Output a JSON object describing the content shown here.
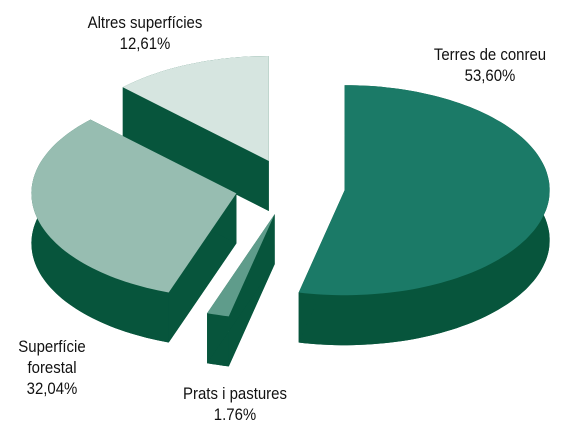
{
  "chart_data": {
    "type": "pie3d",
    "categories": [
      "Terres de conreu",
      "Prats i pastures",
      "Superfície forestal",
      "Altres superfícies"
    ],
    "values": [
      53.6,
      1.76,
      32.04,
      12.61
    ],
    "value_labels": [
      "53,60%",
      "1.76%",
      "32,04%",
      "12,61%"
    ],
    "colors": [
      "#1b7a67",
      "#5f9c8b",
      "#97bdb1",
      "#d6e5e0"
    ],
    "side_color": "#07553c"
  }
}
